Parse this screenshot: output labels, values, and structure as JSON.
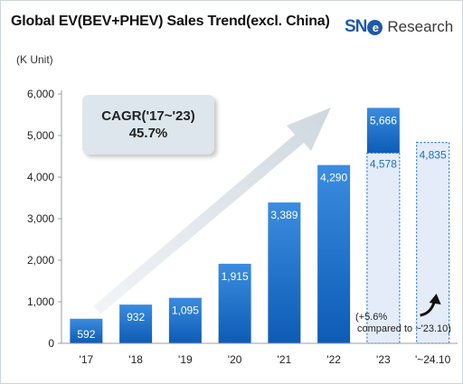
{
  "header": {
    "title": "Global EV(BEV+PHEV)  Sales Trend(excl. China)",
    "unit": "(K Unit)",
    "logo_mark": "SN",
    "logo_mark_letter": "e",
    "logo_text": "Research"
  },
  "colors": {
    "bar_top": "#3b8ce0",
    "bar_bottom": "#0d5bb5",
    "dashed_fill": "#e4ecf9",
    "dashed_border": "#2c7bd0",
    "arrow": "#e4e9ee"
  },
  "cagr": {
    "line1": "CAGR('17~'23)",
    "line2": "45.7%"
  },
  "note": {
    "line1": "(+5.6%",
    "line2": "compared to ~'23.10)"
  },
  "chart_data": {
    "type": "bar",
    "title": "Global EV(BEV+PHEV)  Sales Trend(excl. China)",
    "ylabel": "(K Unit)",
    "ylim": [
      0,
      6000
    ],
    "yticks": [
      0,
      1000,
      2000,
      3000,
      4000,
      5000,
      6000
    ],
    "ytick_labels": [
      "0",
      "1,000",
      "2,000",
      "3,000",
      "4,000",
      "5,000",
      "6,000"
    ],
    "categories": [
      "'17",
      "'18",
      "'19",
      "'20",
      "'21",
      "'22",
      "'23",
      "'~24.10"
    ],
    "values": [
      592,
      932,
      1095,
      1915,
      3389,
      4290,
      5666,
      4835
    ],
    "labels": [
      "592",
      "932",
      "1,095",
      "1,915",
      "3,389",
      "4,290",
      "5,666",
      "4,835"
    ],
    "partial_2023_through_oct": 4578,
    "partial_2023_label": "4,578",
    "grid": false
  }
}
